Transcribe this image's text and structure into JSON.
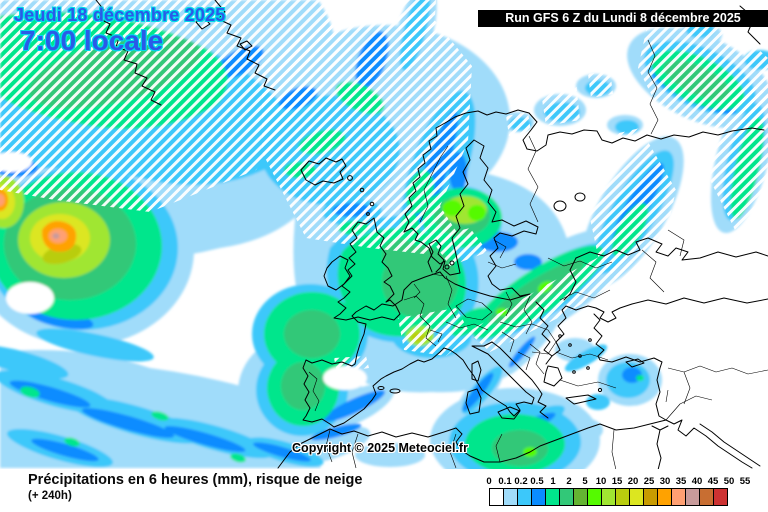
{
  "header": {
    "date_line": "Jeudi 18 décembre 2025",
    "time_line": "7:00 locale",
    "run_info": "Run GFS 6 Z du Lundi 8 décembre 2025"
  },
  "map": {
    "copyright": "Copyright © 2025 Meteociel.fr",
    "region": "Europe / Atlantique nord"
  },
  "footer": {
    "title": "Précipitations en 6 heures (mm), risque de neige",
    "forecast_step": "(+ 240h)"
  },
  "legend": {
    "unit_values": [
      "0",
      "0.1",
      "0.2",
      "0.5",
      "1",
      "2",
      "5",
      "10",
      "15",
      "20",
      "25",
      "30",
      "35",
      "40",
      "45",
      "50",
      "55"
    ],
    "colors": [
      "#ffffff",
      "#a0dcfa",
      "#3cc8fa",
      "#0a8cff",
      "#00e68c",
      "#32c878",
      "#64b432",
      "#55fa00",
      "#a0e632",
      "#b9cd0e",
      "#dce620",
      "#c89b00",
      "#ffa200",
      "#ffa073",
      "#c89b9b",
      "#c86e32",
      "#cd3232"
    ]
  },
  "theme": {
    "date_text": "#2a5ae8",
    "date_outline": "#00dcea",
    "run_bg": "#000000",
    "run_text": "#ffffff",
    "coastline": "#000000",
    "background": "#ffffff",
    "snow_hatch": "#ffffff"
  }
}
